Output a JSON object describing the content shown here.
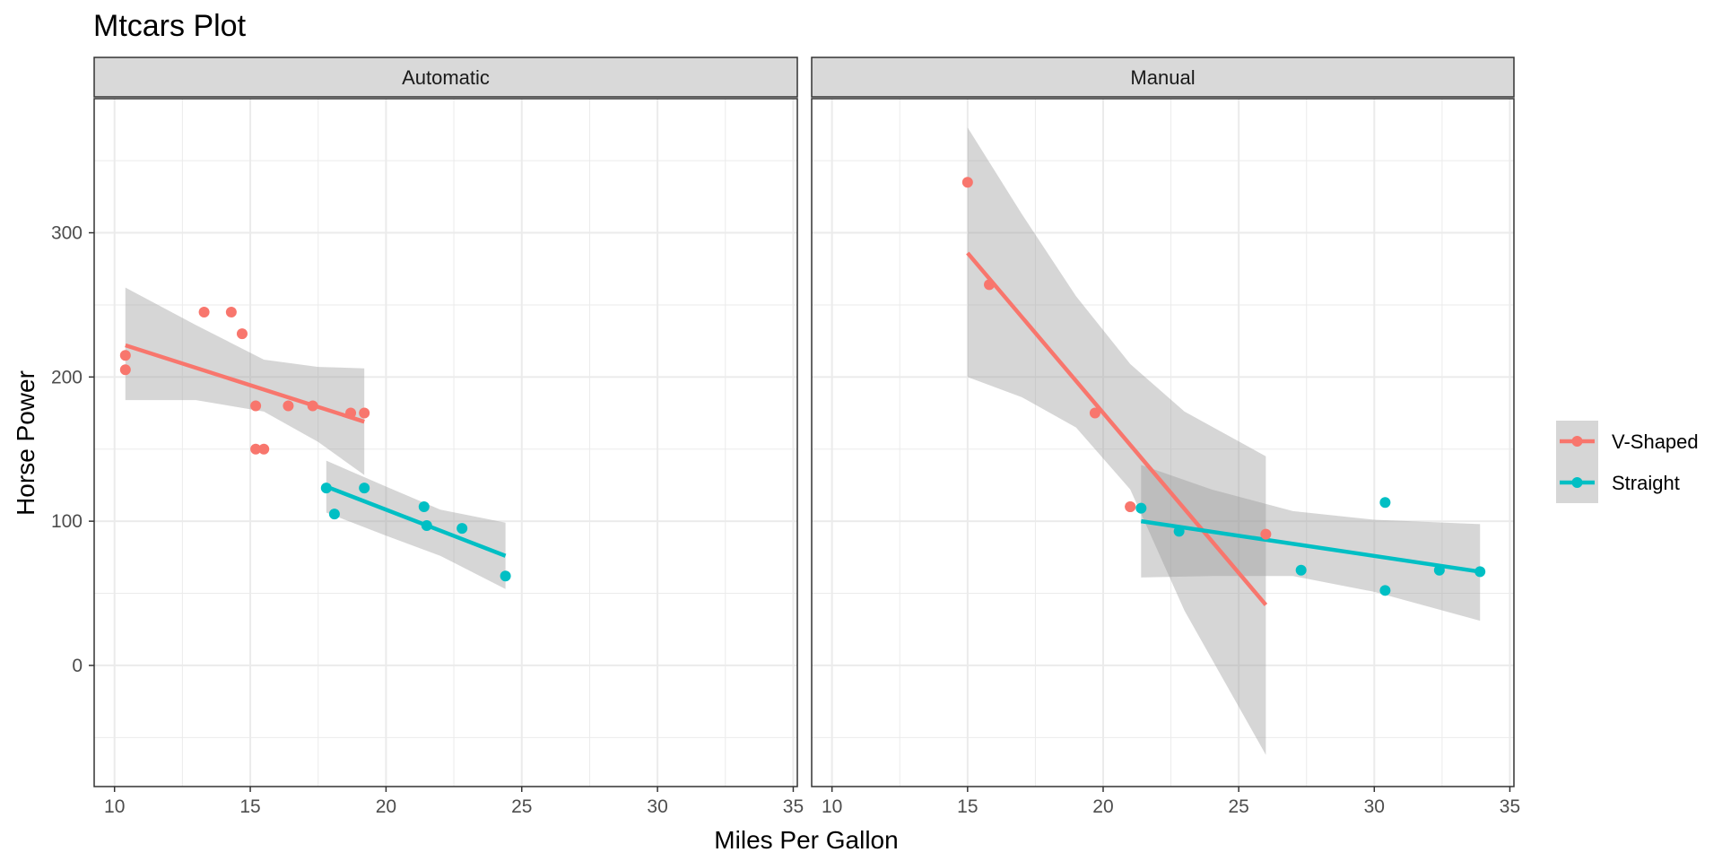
{
  "chart_data": {
    "type": "scatter",
    "title": "Mtcars Plot",
    "xlabel": "Miles Per Gallon",
    "ylabel": "Horse Power",
    "xlim": [
      9.25,
      35.15
    ],
    "ylim": [
      -84,
      393
    ],
    "x_ticks": [
      10,
      15,
      20,
      25,
      30,
      35
    ],
    "y_ticks": [
      0,
      100,
      200,
      300
    ],
    "legend": {
      "position": "right",
      "entries": [
        "V-Shaped",
        "Straight"
      ]
    },
    "colors": {
      "V-Shaped": "#F8766D",
      "Straight": "#00BFC4",
      "band": "#999999",
      "strip_bg": "#d9d9d9",
      "grid": "#ebebeb"
    },
    "facets": [
      {
        "label": "Automatic",
        "series": [
          {
            "name": "V-Shaped",
            "points": [
              [
                18.7,
                175
              ],
              [
                14.3,
                245
              ],
              [
                16.4,
                180
              ],
              [
                17.3,
                180
              ],
              [
                15.2,
                180
              ],
              [
                10.4,
                205
              ],
              [
                10.4,
                215
              ],
              [
                14.7,
                230
              ],
              [
                15.5,
                150
              ],
              [
                15.2,
                150
              ],
              [
                13.3,
                245
              ],
              [
                19.2,
                175
              ]
            ],
            "fit": [
              [
                10.4,
                222
              ],
              [
                19.2,
                169
              ]
            ],
            "band_upper": [
              [
                10.4,
                262
              ],
              [
                13,
                236
              ],
              [
                15.5,
                212
              ],
              [
                17.5,
                207
              ],
              [
                19.2,
                206
              ]
            ],
            "band_lower": [
              [
                10.4,
                184
              ],
              [
                13,
                184
              ],
              [
                15.5,
                176
              ],
              [
                17.5,
                155
              ],
              [
                19.2,
                132
              ]
            ]
          },
          {
            "name": "Straight",
            "points": [
              [
                21.4,
                110
              ],
              [
                18.1,
                105
              ],
              [
                24.4,
                62
              ],
              [
                22.8,
                95
              ],
              [
                19.2,
                123
              ],
              [
                17.8,
                123
              ],
              [
                21.5,
                97
              ]
            ],
            "fit": [
              [
                17.8,
                124
              ],
              [
                24.4,
                76
              ]
            ],
            "band_upper": [
              [
                17.8,
                142
              ],
              [
                20,
                124
              ],
              [
                22,
                108
              ],
              [
                24.4,
                99
              ]
            ],
            "band_lower": [
              [
                17.8,
                106
              ],
              [
                20,
                90
              ],
              [
                22,
                76
              ],
              [
                24.4,
                53
              ]
            ]
          }
        ]
      },
      {
        "label": "Manual",
        "series": [
          {
            "name": "V-Shaped",
            "points": [
              [
                21,
                110
              ],
              [
                21,
                110
              ],
              [
                26,
                91
              ],
              [
                15.8,
                264
              ],
              [
                19.7,
                175
              ],
              [
                15,
                335
              ]
            ],
            "fit": [
              [
                15,
                286
              ],
              [
                26,
                42
              ]
            ],
            "band_upper": [
              [
                15,
                373
              ],
              [
                17,
                313
              ],
              [
                19,
                256
              ],
              [
                21,
                209
              ],
              [
                23,
                176
              ],
              [
                26,
                145
              ]
            ],
            "band_lower": [
              [
                15,
                200
              ],
              [
                17,
                186
              ],
              [
                19,
                165
              ],
              [
                21,
                122
              ],
              [
                23,
                38
              ],
              [
                26,
                -62
              ]
            ]
          },
          {
            "name": "Straight",
            "points": [
              [
                22.8,
                93
              ],
              [
                32.4,
                66
              ],
              [
                30.4,
                52
              ],
              [
                33.9,
                65
              ],
              [
                27.3,
                66
              ],
              [
                30.4,
                113
              ],
              [
                21.4,
                109
              ]
            ],
            "fit": [
              [
                21.4,
                100
              ],
              [
                33.9,
                65
              ]
            ],
            "band_upper": [
              [
                21.4,
                139
              ],
              [
                24,
                122
              ],
              [
                27,
                107
              ],
              [
                30,
                101
              ],
              [
                33.9,
                98
              ]
            ],
            "band_lower": [
              [
                21.4,
                61
              ],
              [
                24,
                62
              ],
              [
                27,
                62
              ],
              [
                30,
                51
              ],
              [
                33.9,
                31
              ]
            ]
          }
        ]
      }
    ]
  }
}
